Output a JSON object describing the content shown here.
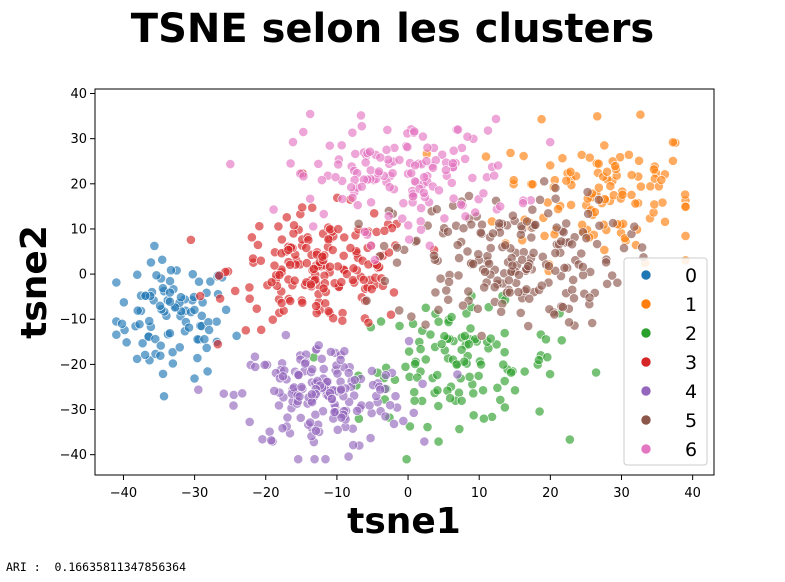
{
  "title": "TSNE selon les clusters",
  "footer": {
    "ari_label": "ARI :",
    "ari_value": "0.16635811347856364"
  },
  "colors": {
    "0": "#1f77b4",
    "1": "#ff7f0e",
    "2": "#2ca02c",
    "3": "#d62728",
    "4": "#9467bd",
    "5": "#8c564b",
    "6": "#e377c2"
  },
  "chart_data": {
    "type": "scatter",
    "title": "TSNE selon les clusters",
    "xlabel": "tsne1",
    "ylabel": "tsne2",
    "xlim": [
      -44,
      43
    ],
    "ylim": [
      -44.5,
      41
    ],
    "xticks": [
      -40,
      -30,
      -20,
      -10,
      0,
      10,
      20,
      30,
      40
    ],
    "yticks": [
      -40,
      -30,
      -20,
      -10,
      0,
      10,
      20,
      30,
      40
    ],
    "grid": false,
    "legend_position": "lower-right",
    "series": [
      {
        "name": "0",
        "color": "#1f77b4",
        "cluster": {
          "cx": -33,
          "cy": -10,
          "sx": 4.2,
          "sy": 6.5,
          "n": 95
        }
      },
      {
        "name": "1",
        "color": "#ff7f0e",
        "cluster": {
          "cx": 27,
          "cy": 18,
          "sx": 7.0,
          "sy": 7.5,
          "n": 120
        }
      },
      {
        "name": "2",
        "color": "#2ca02c",
        "cluster": {
          "cx": 7,
          "cy": -20,
          "sx": 7.0,
          "sy": 6.5,
          "n": 120
        }
      },
      {
        "name": "3",
        "color": "#d62728",
        "cluster": {
          "cx": -12,
          "cy": 1,
          "sx": 6.5,
          "sy": 6.5,
          "n": 180
        }
      },
      {
        "name": "4",
        "color": "#9467bd",
        "cluster": {
          "cx": -12,
          "cy": -27,
          "sx": 6.0,
          "sy": 6.0,
          "n": 170
        }
      },
      {
        "name": "5",
        "color": "#8c564b",
        "cluster": {
          "cx": 14,
          "cy": 3,
          "sx": 8.0,
          "sy": 7.5,
          "n": 200
        }
      },
      {
        "name": "6",
        "color": "#e377c2",
        "cluster": {
          "cx": -1,
          "cy": 22,
          "sx": 8.0,
          "sy": 6.0,
          "n": 150
        }
      }
    ]
  }
}
